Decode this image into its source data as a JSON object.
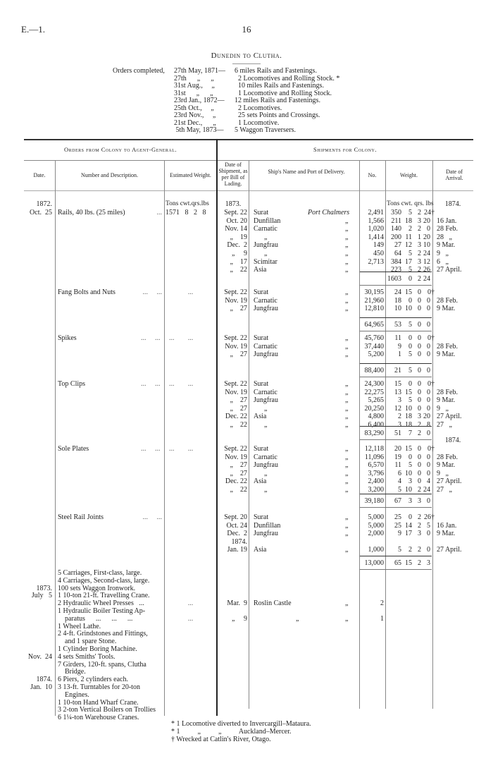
{
  "header": {
    "ref": "E.—1.",
    "page": "16",
    "title": "Dunedin to Clutha."
  },
  "orders_completed": {
    "label": "Orders completed,",
    "lines": [
      {
        "date": "27th May, 1871—",
        "item": "6 miles Rails and Fastenings."
      },
      {
        "date": "27th      „      „",
        "item": "2 Locomotives and Rolling Stock. *"
      },
      {
        "date": "31st Aug.,     „",
        "item": "10 miles Rails and Fastenings."
      },
      {
        "date": "31st      „      „",
        "item": "1 Locomotive and Rolling Stock."
      },
      {
        "date": "23rd Jan., 1872—",
        "item": "12 miles Rails and Fastenings."
      },
      {
        "date": "25th Oct.,     „",
        "item": "2 Locomotives."
      },
      {
        "date": "23rd Nov.,     „",
        "item": "25 sets Points and Crossings."
      },
      {
        "date": "21st Dec.,      „",
        "item": "1 Locomotive."
      },
      {
        "date": " 5th May, 1873—",
        "item": "5 Waggon Traversers."
      }
    ]
  },
  "table": {
    "group_left": "Orders from Colony to Agent-General.",
    "group_right": "Shipments for Colony.",
    "columns": [
      "Date.",
      "Number and Description.",
      "Estimated Weight.",
      "Date of Shipment, as per Bill of Lading.",
      "Ship's Name and Port of Delivery.",
      "No.",
      "Weight.",
      "Date of Arrival."
    ],
    "weight_units": "Tons cwt. qrs. lbs",
    "blocks": [
      {
        "order_date": [
          "1872.",
          "Oct.  25"
        ],
        "description": "Rails, 40 lbs. (25 miles)",
        "leader": "...",
        "estimated_weight": {
          "units": "Tons cwt.qrs.lbs",
          "value": "1571   8   2   8"
        },
        "ship_year": "1873.",
        "arrival_year": "1874.",
        "rows": [
          {
            "date": "Sept. 22",
            "ship": "Surat",
            "port": "Port Chalmers",
            "no": "2,491",
            "w": [
              "350",
              "5",
              "2",
              "24†"
            ],
            "arrival": ""
          },
          {
            "date": "Oct. 20",
            "ship": "Dunfillan",
            "port": "„",
            "no": "1,566",
            "w": [
              "211",
              "18",
              "3",
              "20"
            ],
            "arrival": "16 Jan."
          },
          {
            "date": "Nov. 14",
            "ship": "Carnatic",
            "port": "„",
            "no": "1,020",
            "w": [
              "140",
              "2",
              "2",
              "0"
            ],
            "arrival": "28 Feb."
          },
          {
            "date": "„    19",
            "ship": "„",
            "port": "„",
            "no": "1,414",
            "w": [
              "200",
              "11",
              "1",
              "20"
            ],
            "arrival": "28   „"
          },
          {
            "date": "Dec.  2",
            "ship": "Jungfrau",
            "port": "„",
            "no": "149",
            "w": [
              "27",
              "12",
              "3",
              "10"
            ],
            "arrival": "9 Mar."
          },
          {
            "date": "„     9",
            "ship": "„",
            "port": "„",
            "no": "450",
            "w": [
              "64",
              "5",
              "2",
              "24"
            ],
            "arrival": "9   „"
          },
          {
            "date": "„    17",
            "ship": "Scimitar",
            "port": "„",
            "no": "2,713",
            "w": [
              "384",
              "17",
              "3",
              "12"
            ],
            "arrival": "6   „"
          },
          {
            "date": "„    22",
            "ship": "Asia",
            "port": "„",
            "no": "",
            "w": [
              "223",
              "5",
              "2",
              "26"
            ],
            "arrival": "27 April."
          }
        ],
        "total": {
          "no": "",
          "w": [
            "1603",
            "0",
            "2",
            "24"
          ]
        }
      },
      {
        "description": "Fang Bolts and Nuts",
        "leader": "...     ...",
        "estimated_weight": {
          "value": "..."
        },
        "rows": [
          {
            "date": "Sept. 22",
            "ship": "Surat",
            "port": "„",
            "no": "30,195",
            "w": [
              "24",
              "15",
              "0",
              "0†"
            ],
            "arrival": ""
          },
          {
            "date": "Nov. 19",
            "ship": "Carnatic",
            "port": "„",
            "no": "21,960",
            "w": [
              "18",
              "0",
              "0",
              "0"
            ],
            "arrival": "28 Feb."
          },
          {
            "date": "„    27",
            "ship": "Jungfrau",
            "port": "„",
            "no": "12,810",
            "w": [
              "10",
              "10",
              "0",
              "0"
            ],
            "arrival": "9 Mar."
          }
        ],
        "total": {
          "no": "64,965",
          "w": [
            "53",
            "5",
            "0",
            "0"
          ]
        }
      },
      {
        "description": "Spikes",
        "leader": "...     ...     ...",
        "estimated_weight": {
          "value": "..."
        },
        "rows": [
          {
            "date": "Sept. 22",
            "ship": "Surat",
            "port": "„",
            "no": "45,760",
            "w": [
              "11",
              "0",
              "0",
              "0†"
            ],
            "arrival": ""
          },
          {
            "date": "Nov. 19",
            "ship": "Carnatic",
            "port": "„",
            "no": "37,440",
            "w": [
              "9",
              "0",
              "0",
              "0"
            ],
            "arrival": "28 Feb."
          },
          {
            "date": "„    27",
            "ship": "Jungfrau",
            "port": "„",
            "no": "5,200",
            "w": [
              "1",
              "5",
              "0",
              "0"
            ],
            "arrival": "9 Mar."
          }
        ],
        "total": {
          "no": "88,400",
          "w": [
            "21",
            "5",
            "0",
            "0"
          ]
        }
      },
      {
        "description": "Top Clips",
        "leader": "...     ...     ...",
        "estimated_weight": {
          "value": "..."
        },
        "after_arrival_year": "1874.",
        "rows": [
          {
            "date": "Sept. 22",
            "ship": "Surat",
            "port": "„",
            "no": "24,300",
            "w": [
              "15",
              "0",
              "0",
              "0†"
            ],
            "arrival": ""
          },
          {
            "date": "Nov. 19",
            "ship": "Carnatic",
            "port": "„",
            "no": "22,275",
            "w": [
              "13",
              "15",
              "0",
              "0"
            ],
            "arrival": "28 Feb."
          },
          {
            "date": "„    27",
            "ship": "Jungfrau",
            "port": "„",
            "no": "5,265",
            "w": [
              "3",
              "5",
              "0",
              "0"
            ],
            "arrival": "9 Mar."
          },
          {
            "date": "„    27",
            "ship": "„",
            "port": "„",
            "no": "20,250",
            "w": [
              "12",
              "10",
              "0",
              "0"
            ],
            "arrival": "9   „"
          },
          {
            "date": "Dec. 22",
            "ship": "Asia",
            "port": "„",
            "no": "4,800",
            "w": [
              "2",
              "18",
              "3",
              "20"
            ],
            "arrival": "27 April."
          },
          {
            "date": "„    22",
            "ship": "„",
            "port": "„",
            "no": "6,400",
            "w": [
              "3",
              "18",
              "2",
              "8"
            ],
            "arrival": "27   „"
          }
        ],
        "total": {
          "no": "83,290",
          "w": [
            "51",
            "7",
            "2",
            "0"
          ]
        }
      },
      {
        "description": "Sole Plates",
        "leader": "...     ...     ...",
        "estimated_weight": {
          "value": "..."
        },
        "rows": [
          {
            "date": "Sept. 22",
            "ship": "Surat",
            "port": "„",
            "no": "12,118",
            "w": [
              "20",
              "15",
              "0",
              "0†"
            ],
            "arrival": ""
          },
          {
            "date": "Nov. 19",
            "ship": "Carnatic",
            "port": "„",
            "no": "11,096",
            "w": [
              "19",
              "0",
              "0",
              "0"
            ],
            "arrival": "28 Feb."
          },
          {
            "date": "„    27",
            "ship": "Jungfrau",
            "port": "„",
            "no": "6,570",
            "w": [
              "11",
              "5",
              "0",
              "0"
            ],
            "arrival": "9 Mar."
          },
          {
            "date": "„    27",
            "ship": "„",
            "port": "„",
            "no": "3,796",
            "w": [
              "6",
              "10",
              "0",
              "0"
            ],
            "arrival": "9   „"
          },
          {
            "date": "Dec. 22",
            "ship": "Asia",
            "port": "„",
            "no": "2,400",
            "w": [
              "4",
              "3",
              "0",
              "4"
            ],
            "arrival": "27 April."
          },
          {
            "date": "„    22",
            "ship": "„",
            "port": "„",
            "no": "3,200",
            "w": [
              "5",
              "10",
              "2",
              "24"
            ],
            "arrival": "27   „"
          }
        ],
        "total": {
          "no": "39,180",
          "w": [
            "67",
            "3",
            "3",
            "0"
          ]
        }
      },
      {
        "description": "Steel Rail Joints",
        "leader": "...     ...",
        "estimated_weight": {
          "value": ""
        },
        "rows": [
          {
            "date": "Sept. 20",
            "ship": "Surat",
            "port": "„",
            "no": "5,000",
            "w": [
              "25",
              "0",
              "2",
              "26†"
            ],
            "arrival": ""
          },
          {
            "date": "Oct. 24",
            "ship": "Dunfillan",
            "port": "„",
            "no": "5,000",
            "w": [
              "25",
              "14",
              "2",
              "5"
            ],
            "arrival": "16 Jan."
          },
          {
            "date": "Dec.  2",
            "ship": "Jungfrau",
            "port": "„",
            "no": "2,000",
            "w": [
              "9",
              "17",
              "3",
              "0"
            ],
            "arrival": "9 Mar."
          },
          {
            "date": "1874.",
            "ship": "",
            "port": "",
            "no": "",
            "w": [
              "",
              "",
              "",
              ""
            ],
            "arrival": ""
          },
          {
            "date": "Jan. 19",
            "ship": "Asia",
            "port": "„",
            "no": "1,000",
            "w": [
              "5",
              "2",
              "2",
              "0"
            ],
            "arrival": "27 April."
          }
        ],
        "total": {
          "no": "13,000",
          "w": [
            "65",
            "15",
            "2",
            "3"
          ]
        }
      }
    ],
    "misc": {
      "lines": [
        {
          "date": "",
          "text": "5 Carriages, First-class, large."
        },
        {
          "date": "",
          "text": "4 Carriages, Second-class, large."
        },
        {
          "date": "1873.",
          "text": "100 sets Waggon Ironwork."
        },
        {
          "date": "July   5",
          "text": "1 10-ton 21-ft. Travelling Crane."
        },
        {
          "date": "",
          "text": "2 Hydraulic Wheel Presses   ...",
          "est": "...",
          "ship_date": "Mar.  9",
          "ship": "Roslin Castle",
          "port": "„",
          "no": "2"
        },
        {
          "date": "",
          "text": "1 Hydraulic Boiler Testing Ap-"
        },
        {
          "date": "",
          "text": "    paratus      ...      ...      ...",
          "est": "...",
          "ship_date": "„     9",
          "ship": "„",
          "port": "„",
          "no": "1"
        },
        {
          "date": "",
          "text": "1 Wheel Lathe."
        },
        {
          "date": "",
          "text": "2 4-ft. Grindstones and Fittings,"
        },
        {
          "date": "",
          "text": "    and 1 spare Stone."
        },
        {
          "date": "",
          "text": "1 Cylinder Boring Machine."
        },
        {
          "date": "Nov.  24",
          "text": "4 sets Smiths' Tools."
        },
        {
          "date": "",
          "text": "7 Girders, 120-ft. spans, Clutha"
        },
        {
          "date": "",
          "text": "    Bridge."
        },
        {
          "date": "1874.",
          "text": "6 Piers, 2 cylinders each."
        },
        {
          "date": "Jan.  10",
          "text": "3 13-ft. Turntables for 20-ton"
        },
        {
          "date": "",
          "text": "    Engines."
        },
        {
          "date": "",
          "text": "1 10-ton Hand Wharf Crane."
        },
        {
          "date": "",
          "text": "3 2-ton Vertical Boilers on Trollies"
        },
        {
          "date": "",
          "text": "6 1¼-ton Warehouse Cranes."
        }
      ]
    }
  },
  "footnotes": [
    "* 1 Locomotive diverted to Invercargill–Mataura.",
    "* 1          „          „          Auckland–Mercer.",
    "† Wrecked at Catlin's River, Otago."
  ]
}
